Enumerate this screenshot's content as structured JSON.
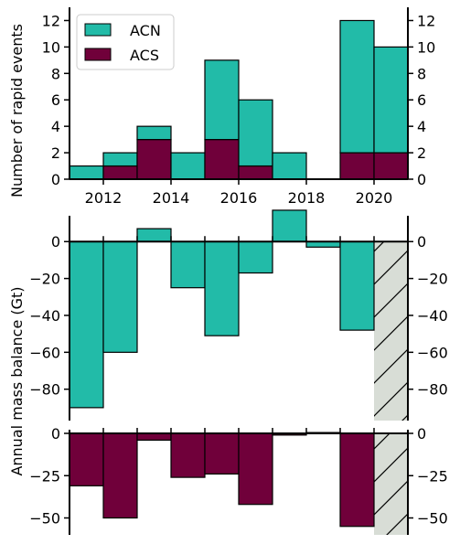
{
  "colors": {
    "acn": "#22BBA8",
    "acs": "#70003A",
    "hatch_fill": "#D8DDD6",
    "edge": "#000000"
  },
  "chart_data": [
    {
      "type": "bar",
      "stacked": true,
      "x": [
        2011,
        2012,
        2013,
        2014,
        2015,
        2016,
        2017,
        2018,
        2019,
        2020
      ],
      "bin_width_years": 1,
      "series": [
        {
          "name": "ACN",
          "values": [
            1,
            1,
            1,
            2,
            6,
            5,
            2,
            0,
            10,
            8
          ]
        },
        {
          "name": "ACS",
          "values": [
            0,
            1,
            3,
            0,
            3,
            1,
            0,
            0,
            2,
            2
          ]
        }
      ],
      "ylabel": "Number of rapid events",
      "ylim": [
        0,
        13
      ],
      "yticks": [
        "0",
        "2",
        "4",
        "6",
        "8",
        "10",
        "12"
      ],
      "xticks": [
        "2012",
        "2014",
        "2016",
        "2018",
        "2020"
      ],
      "xlim": [
        2011,
        2021
      ],
      "legend": "top-left"
    },
    {
      "type": "bar",
      "x": [
        2011,
        2012,
        2013,
        2014,
        2015,
        2016,
        2017,
        2018,
        2019
      ],
      "series": [
        {
          "name": "ACN",
          "values": [
            -90,
            -60,
            7,
            -25,
            -51,
            -17,
            17,
            -3,
            -48
          ]
        }
      ],
      "hatched_bin": 2020,
      "ylim": [
        -97,
        13
      ],
      "yticks": [
        "0",
        "−20",
        "−40",
        "−60",
        "−80"
      ],
      "ylabel": "Annual mass balance (Gt)"
    },
    {
      "type": "bar",
      "x": [
        2011,
        2012,
        2013,
        2014,
        2015,
        2016,
        2017,
        2018,
        2019
      ],
      "series": [
        {
          "name": "ACS",
          "values": [
            -31,
            -50,
            -4,
            -26,
            -24,
            -42,
            -1,
            0.5,
            -55
          ]
        }
      ],
      "hatched_bin": 2020,
      "ylim": [
        -60,
        0
      ],
      "yticks": [
        "0",
        "−25",
        "−50"
      ]
    }
  ]
}
